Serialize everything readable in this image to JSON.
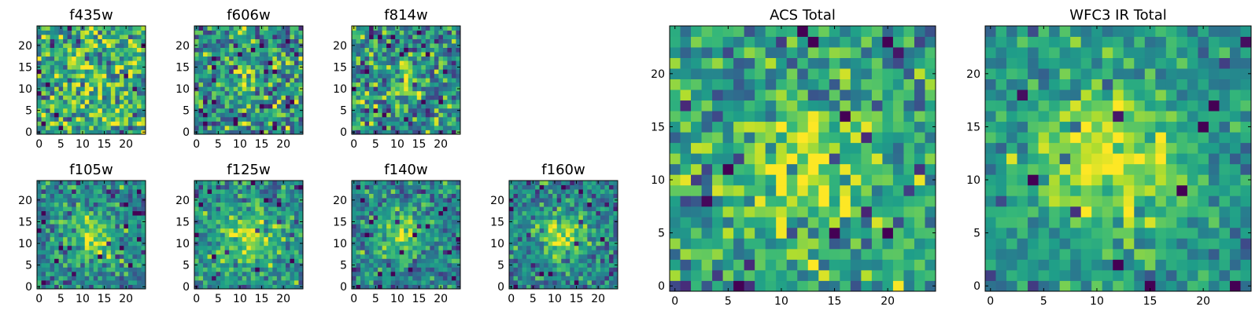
{
  "figure": {
    "description_colormap": "viridis"
  },
  "chart_data": [
    {
      "type": "heatmap",
      "title": "f435w",
      "grid": [
        25,
        25
      ],
      "xlim": [
        -0.5,
        24.5
      ],
      "ylim": [
        -0.5,
        24.5
      ],
      "xticks": [
        0,
        5,
        10,
        15,
        20
      ],
      "yticks": [
        0,
        5,
        10,
        15,
        20
      ],
      "xtick_labels": [
        "0",
        "5",
        "10",
        "15",
        "20"
      ],
      "ytick_labels": [
        "0",
        "5",
        "10",
        "15",
        "20"
      ],
      "blob": {
        "cx": 12,
        "cy": 12,
        "sigma": 4,
        "amp": 0.15
      },
      "noise": 0.32,
      "seed": 11,
      "base": 0.6
    },
    {
      "type": "heatmap",
      "title": "f606w",
      "grid": [
        25,
        25
      ],
      "xlim": [
        -0.5,
        24.5
      ],
      "ylim": [
        -0.5,
        24.5
      ],
      "xticks": [
        0,
        5,
        10,
        15,
        20
      ],
      "yticks": [
        0,
        5,
        10,
        15,
        20
      ],
      "xtick_labels": [
        "0",
        "5",
        "10",
        "15",
        "20"
      ],
      "ytick_labels": [
        "0",
        "5",
        "10",
        "15",
        "20"
      ],
      "blob": {
        "cx": 12,
        "cy": 12,
        "sigma": 2.5,
        "amp": 0.35
      },
      "noise": 0.3,
      "seed": 23,
      "base": 0.5
    },
    {
      "type": "heatmap",
      "title": "f814w",
      "grid": [
        25,
        25
      ],
      "xlim": [
        -0.5,
        24.5
      ],
      "ylim": [
        -0.5,
        24.5
      ],
      "xticks": [
        0,
        5,
        10,
        15,
        20
      ],
      "yticks": [
        0,
        5,
        10,
        15,
        20
      ],
      "xtick_labels": [
        "0",
        "5",
        "10",
        "15",
        "20"
      ],
      "ytick_labels": [
        "0",
        "5",
        "10",
        "15",
        "20"
      ],
      "blob": {
        "cx": 12,
        "cy": 12,
        "sigma": 2.5,
        "amp": 0.35
      },
      "noise": 0.3,
      "seed": 37,
      "base": 0.5
    },
    {
      "type": "heatmap",
      "title": "f105w",
      "grid": [
        25,
        25
      ],
      "xlim": [
        -0.5,
        24.5
      ],
      "ylim": [
        -0.5,
        24.5
      ],
      "xticks": [
        0,
        5,
        10,
        15,
        20
      ],
      "yticks": [
        0,
        5,
        10,
        15,
        20
      ],
      "xtick_labels": [
        "0",
        "5",
        "10",
        "15",
        "20"
      ],
      "ytick_labels": [
        "0",
        "5",
        "10",
        "15",
        "20"
      ],
      "blob": {
        "cx": 12,
        "cy": 11,
        "sigma": 4,
        "amp": 0.4
      },
      "noise": 0.22,
      "seed": 41,
      "base": 0.45
    },
    {
      "type": "heatmap",
      "title": "f125w",
      "grid": [
        25,
        25
      ],
      "xlim": [
        -0.5,
        24.5
      ],
      "ylim": [
        -0.5,
        24.5
      ],
      "xticks": [
        0,
        5,
        10,
        15,
        20
      ],
      "yticks": [
        0,
        5,
        10,
        15,
        20
      ],
      "xtick_labels": [
        "0",
        "5",
        "10",
        "15",
        "20"
      ],
      "ytick_labels": [
        "0",
        "5",
        "10",
        "15",
        "20"
      ],
      "blob": {
        "cx": 11,
        "cy": 11,
        "sigma": 4.5,
        "amp": 0.35
      },
      "noise": 0.22,
      "seed": 53,
      "base": 0.5
    },
    {
      "type": "heatmap",
      "title": "f140w",
      "grid": [
        25,
        25
      ],
      "xlim": [
        -0.5,
        24.5
      ],
      "ylim": [
        -0.5,
        24.5
      ],
      "xticks": [
        0,
        5,
        10,
        15,
        20
      ],
      "yticks": [
        0,
        5,
        10,
        15,
        20
      ],
      "xtick_labels": [
        "0",
        "5",
        "10",
        "15",
        "20"
      ],
      "ytick_labels": [
        "0",
        "5",
        "10",
        "15",
        "20"
      ],
      "blob": {
        "cx": 11,
        "cy": 12,
        "sigma": 4,
        "amp": 0.4
      },
      "noise": 0.22,
      "seed": 67,
      "base": 0.45
    },
    {
      "type": "heatmap",
      "title": "f160w",
      "grid": [
        25,
        25
      ],
      "xlim": [
        -0.5,
        24.5
      ],
      "ylim": [
        -0.5,
        24.5
      ],
      "xticks": [
        0,
        5,
        10,
        15,
        20
      ],
      "yticks": [
        0,
        5,
        10,
        15,
        20
      ],
      "xtick_labels": [
        "0",
        "5",
        "10",
        "15",
        "20"
      ],
      "ytick_labels": [
        "0",
        "5",
        "10",
        "15",
        "20"
      ],
      "blob": {
        "cx": 12,
        "cy": 12,
        "sigma": 3.5,
        "amp": 0.45
      },
      "noise": 0.22,
      "seed": 79,
      "base": 0.45
    },
    {
      "type": "heatmap",
      "title": "ACS Total",
      "grid": [
        25,
        25
      ],
      "xlim": [
        -0.5,
        24.5
      ],
      "ylim": [
        -0.5,
        24.5
      ],
      "xticks": [
        0,
        5,
        10,
        15,
        20
      ],
      "yticks": [
        0,
        5,
        10,
        15,
        20
      ],
      "xtick_labels": [
        "0",
        "5",
        "10",
        "15",
        "20"
      ],
      "ytick_labels": [
        "0",
        "5",
        "10",
        "15",
        "20"
      ],
      "blob": {
        "cx": 12,
        "cy": 11,
        "sigma": 4,
        "amp": 0.35
      },
      "noise": 0.26,
      "seed": 97,
      "base": 0.55
    },
    {
      "type": "heatmap",
      "title": "WFC3 IR Total",
      "grid": [
        25,
        25
      ],
      "xlim": [
        -0.5,
        24.5
      ],
      "ylim": [
        -0.5,
        24.5
      ],
      "xticks": [
        0,
        5,
        10,
        15,
        20
      ],
      "yticks": [
        0,
        5,
        10,
        15,
        20
      ],
      "xtick_labels": [
        "0",
        "5",
        "10",
        "15",
        "20"
      ],
      "ytick_labels": [
        "0",
        "5",
        "10",
        "15",
        "20"
      ],
      "blob": {
        "cx": 11,
        "cy": 12,
        "sigma": 5,
        "amp": 0.45
      },
      "noise": 0.18,
      "seed": 113,
      "base": 0.5
    }
  ]
}
